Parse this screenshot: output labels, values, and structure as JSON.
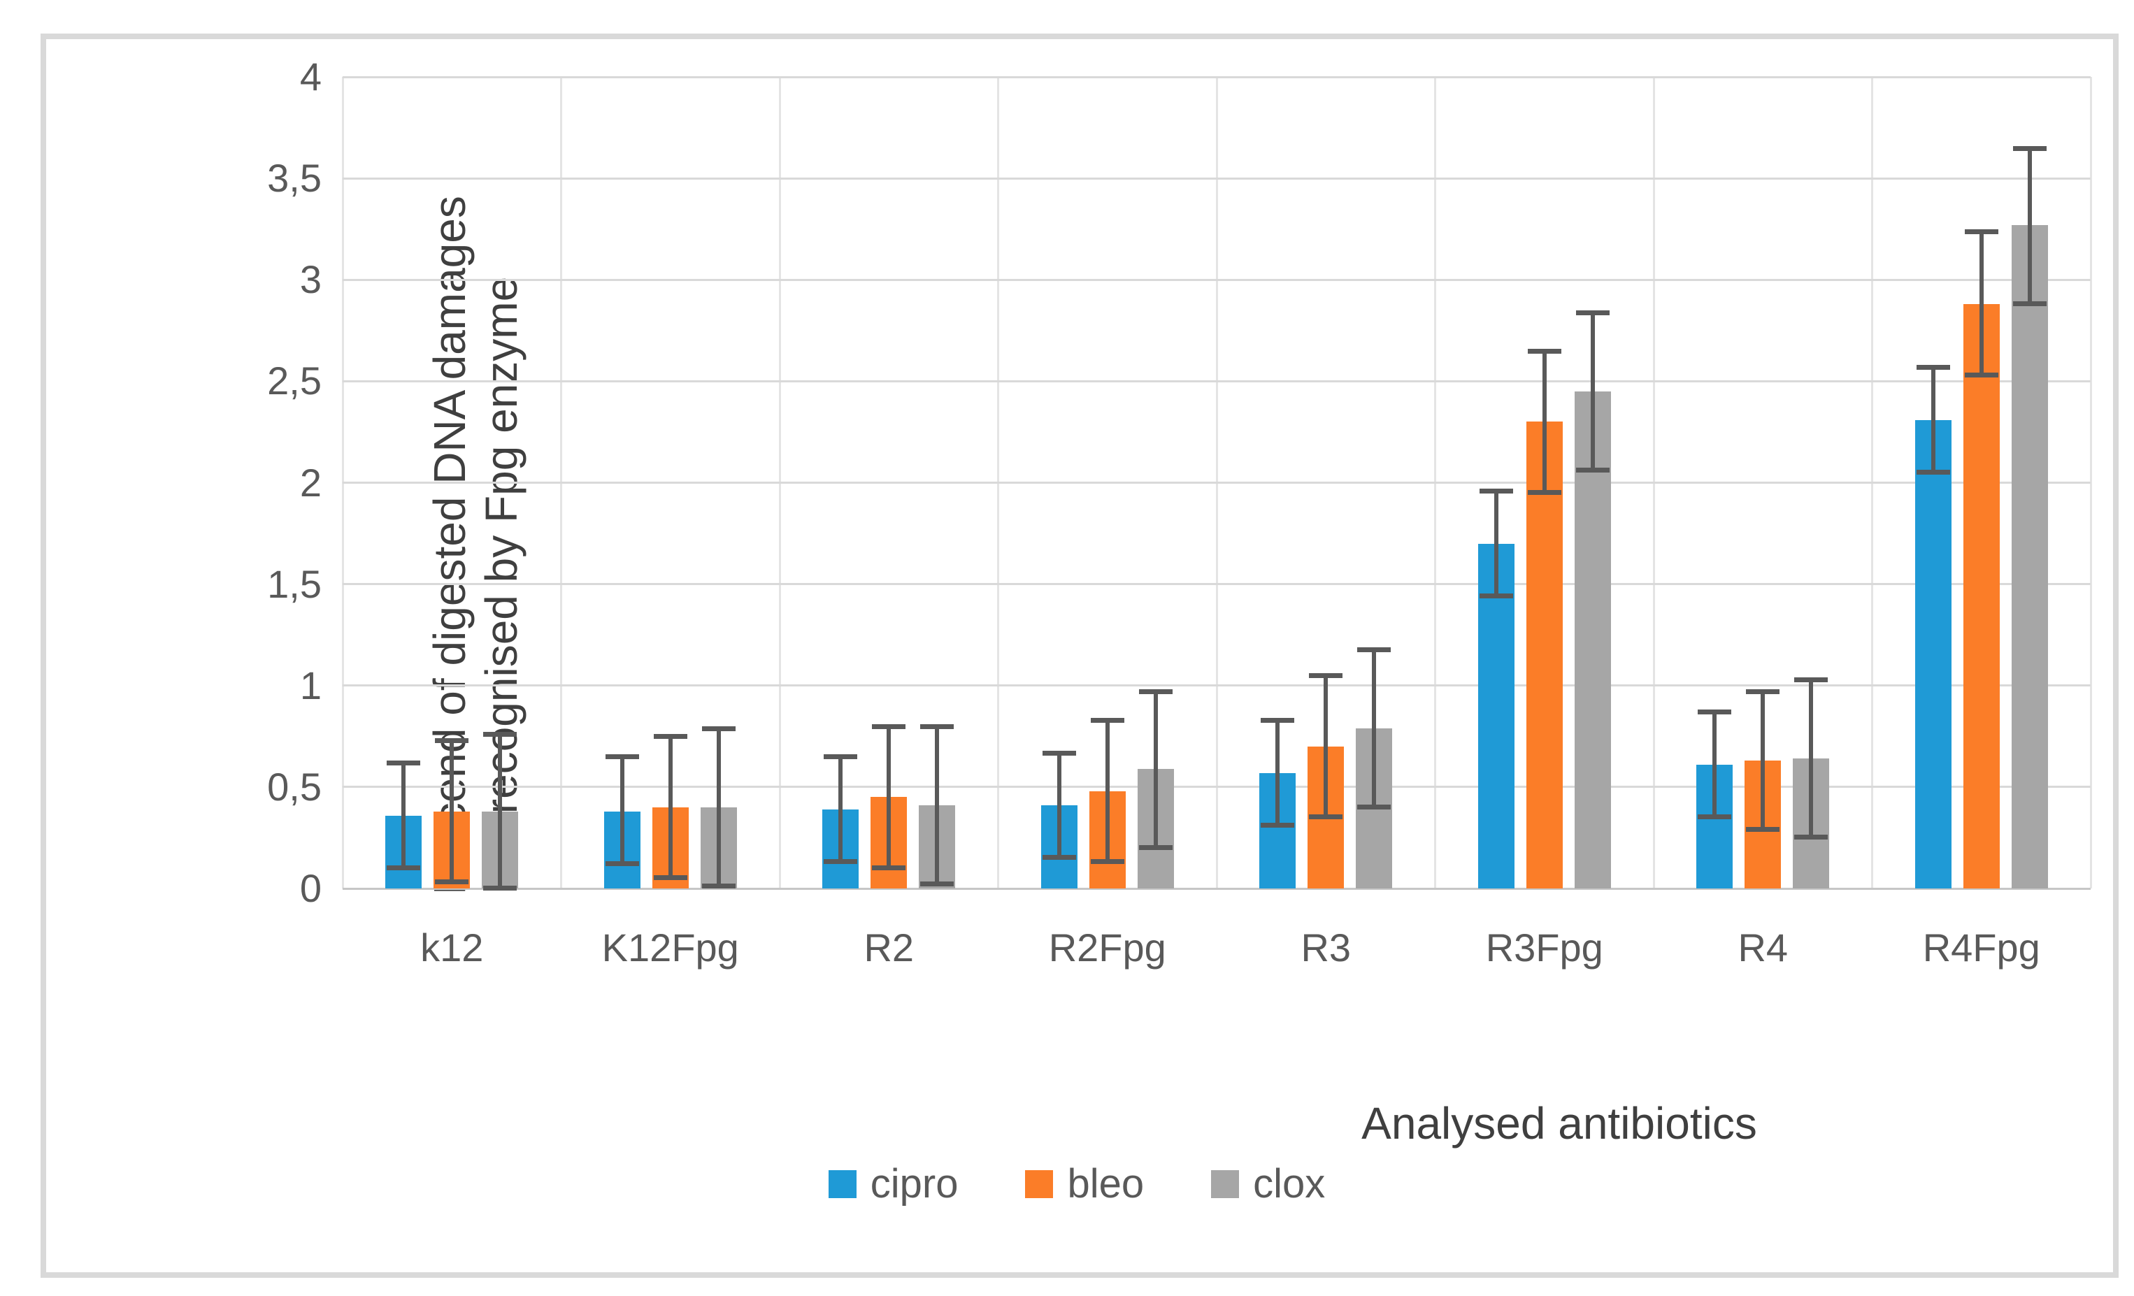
{
  "chart_data": {
    "type": "bar",
    "title": "",
    "xlabel": "Analysed antibiotics",
    "ylabel": "Percend of digested DNA damages recognised by Fpg enzyme",
    "ylabel_lines": [
      "Percend of digested DNA damages",
      "recognised by Fpg enzyme"
    ],
    "categories": [
      "k12",
      "K12Fpg",
      "R2",
      "R2Fpg",
      "R3",
      "R3Fpg",
      "R4",
      "R4Fpg"
    ],
    "series": [
      {
        "name": "cipro",
        "color": "#1F9AD6",
        "values": [
          0.36,
          0.38,
          0.39,
          0.41,
          0.57,
          1.7,
          0.61,
          2.31
        ],
        "error_high": [
          0.62,
          0.65,
          0.65,
          0.67,
          0.83,
          1.96,
          0.87,
          2.57
        ],
        "error_low": [
          0.1,
          0.12,
          0.13,
          0.15,
          0.31,
          1.44,
          0.35,
          2.05
        ]
      },
      {
        "name": "bleo",
        "color": "#FB7D28",
        "values": [
          0.38,
          0.4,
          0.45,
          0.48,
          0.7,
          2.3,
          0.63,
          2.88
        ],
        "error_high": [
          0.73,
          0.75,
          0.8,
          0.83,
          1.05,
          2.65,
          0.97,
          3.24
        ],
        "error_low": [
          0.03,
          0.05,
          0.1,
          0.13,
          0.35,
          1.95,
          0.29,
          2.53
        ]
      },
      {
        "name": "clox",
        "color": "#A6A6A6",
        "values": [
          0.38,
          0.4,
          0.41,
          0.59,
          0.79,
          2.45,
          0.64,
          3.27
        ],
        "error_high": [
          0.76,
          0.79,
          0.8,
          0.97,
          1.18,
          2.84,
          1.03,
          3.65
        ],
        "error_low": [
          0.0,
          0.01,
          0.02,
          0.2,
          0.4,
          2.06,
          0.25,
          2.88
        ]
      }
    ],
    "ylim": [
      0,
      4
    ],
    "ytick_step": 0.5,
    "ytick_labels": [
      "0",
      "0,5",
      "1",
      "1,5",
      "2",
      "2,5",
      "3",
      "3,5",
      "4"
    ],
    "grid": true,
    "legend_position": "bottom",
    "legend_entries": [
      "cipro",
      "bleo",
      "clox"
    ]
  },
  "style_colors": {
    "error_bar": "#595959",
    "gridline": "#D9D9D9",
    "axis_text": "#595959",
    "title_text": "#3F3F3F",
    "chart_border": "#D9D9D9"
  }
}
